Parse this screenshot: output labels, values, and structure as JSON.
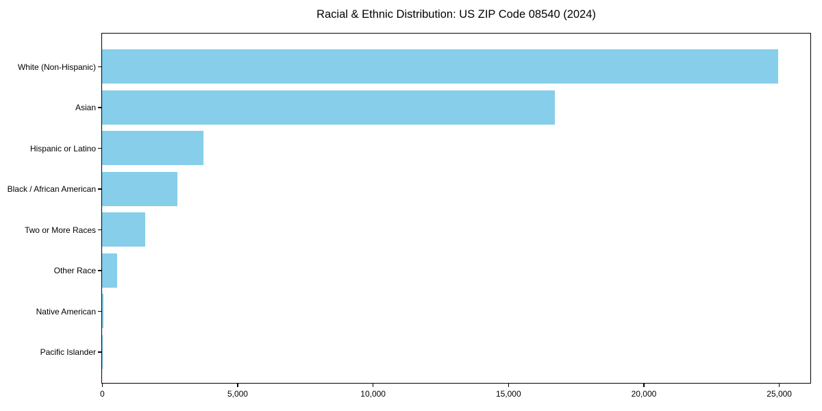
{
  "title": "Racial & Ethnic Distribution: US ZIP Code 08540 (2024)",
  "chart_data": {
    "type": "bar",
    "orientation": "horizontal",
    "title": "Racial & Ethnic Distribution: US ZIP Code 08540 (2024)",
    "xlabel": "",
    "ylabel": "",
    "categories": [
      "White (Non-Hispanic)",
      "Asian",
      "Hispanic or Latino",
      "Black / African American",
      "Two or More Races",
      "Other Race",
      "Native American",
      "Pacific Islander"
    ],
    "values": [
      24950,
      16710,
      3740,
      2780,
      1590,
      550,
      40,
      10
    ],
    "xlim": [
      0,
      26140
    ],
    "x_ticks": [
      0,
      5000,
      10000,
      15000,
      20000,
      25000
    ],
    "x_tick_labels": [
      "0",
      "5,000",
      "10,000",
      "15,000",
      "20,000",
      "25,000"
    ],
    "bar_color": "#87CEEB",
    "frame_color": "#000000",
    "grid": false,
    "legend": false
  }
}
